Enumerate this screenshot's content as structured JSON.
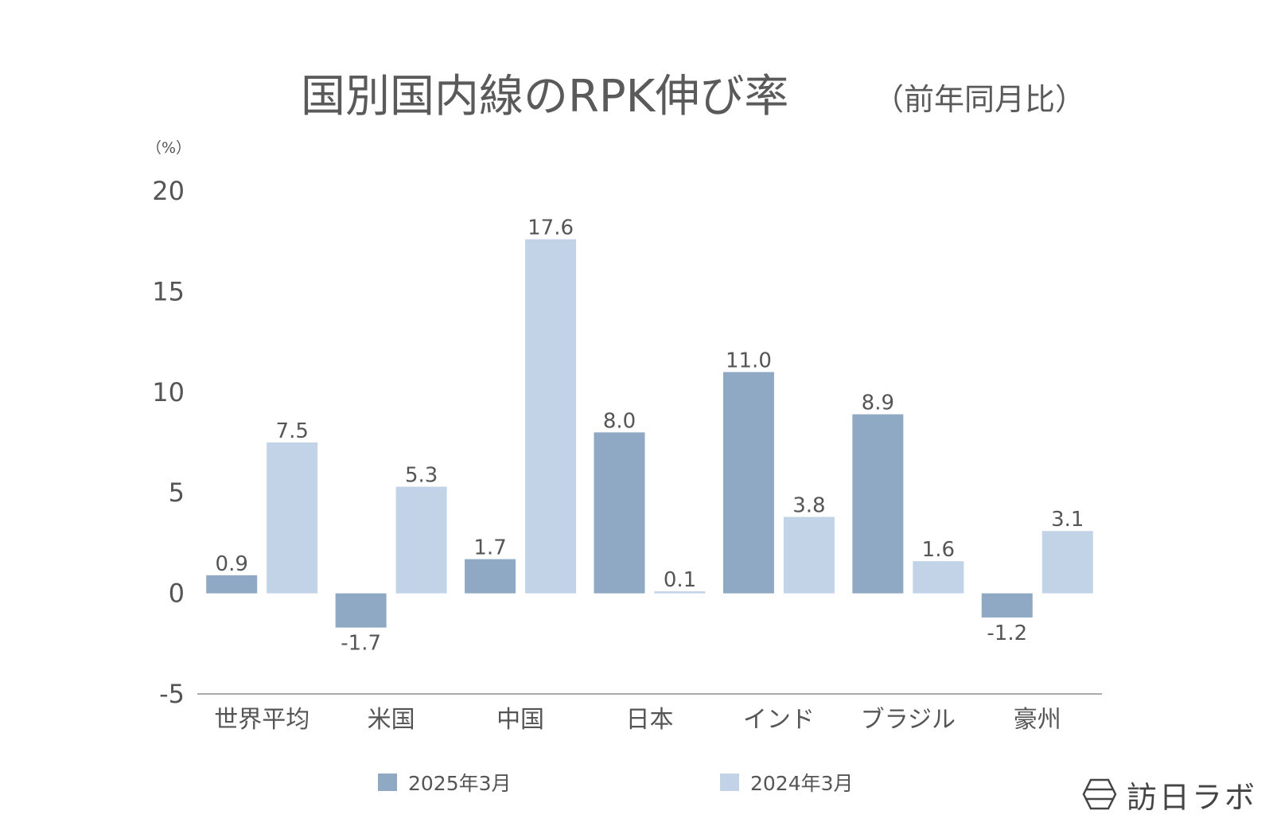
{
  "chart_data": {
    "type": "bar",
    "title": "国別国内線のRPK伸び率",
    "subtitle": "（前年同月比）",
    "ylabel": "（%）",
    "xlabel": "",
    "ylim": [
      -5,
      20
    ],
    "yticks": [
      20,
      15,
      10,
      5,
      0,
      -5
    ],
    "ytick_labels": [
      "20",
      "15",
      "10",
      "5",
      "0",
      "-5"
    ],
    "categories": [
      "世界平均",
      "米国",
      "中国",
      "日本",
      "インド",
      "ブラジル",
      "豪州"
    ],
    "series": [
      {
        "name": "2025年3月",
        "color": "#8fa8c3",
        "values": [
          0.9,
          -1.7,
          1.7,
          8.0,
          11.0,
          8.9,
          -1.2
        ],
        "labels": [
          "0.9",
          "-1.7",
          "1.7",
          "8.0",
          "11.0",
          "8.9",
          "-1.2"
        ]
      },
      {
        "name": "2024年3月",
        "color": "#c2d3e7",
        "values": [
          7.5,
          5.3,
          17.6,
          0.1,
          3.8,
          1.6,
          3.1
        ],
        "labels": [
          "7.5",
          "5.3",
          "17.6",
          "0.1",
          "3.8",
          "1.6",
          "3.1"
        ]
      }
    ],
    "grid": false,
    "legend": "bottom"
  },
  "brand": {
    "name": "訪日ラボ",
    "icon": "hexagon-logo-icon"
  },
  "colors": {
    "series_2025": "#8fa8c3",
    "series_2024": "#c2d3e7",
    "axis": "#aaaaaa",
    "text": "#555555"
  }
}
